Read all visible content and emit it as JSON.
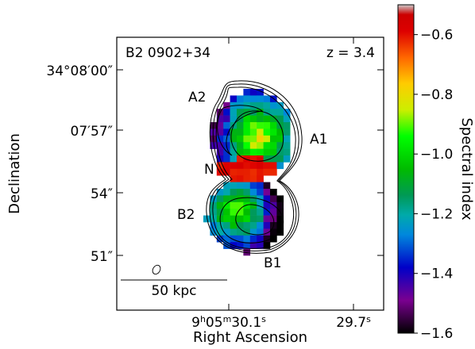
{
  "chart_data": {
    "type": "heatmap",
    "title": "",
    "source_name": "B2 0902+34",
    "redshift_label": "z = 3.4",
    "xlabel": "Right Ascension",
    "ylabel": "Declination",
    "x_ticks": [
      {
        "h": "9",
        "hs": "h",
        "m": "05",
        "ms": "m",
        "s": "30.1",
        "ss": "s"
      },
      {
        "s": "29.7",
        "ss": "s"
      }
    ],
    "y_ticks": [
      "34°08′00″",
      "07′57″",
      "54″",
      "51″"
    ],
    "colorbar": {
      "label": "Spectral index",
      "range": [
        -1.6,
        -0.5
      ],
      "ticks": [
        -0.6,
        -0.8,
        -1.0,
        -1.2,
        -1.4,
        -1.6
      ],
      "tick_labels": [
        "−0.6",
        "−0.8",
        "−1.0",
        "−1.2",
        "−1.4",
        "−1.6"
      ],
      "colormap": "nipy_spectral"
    },
    "component_labels": [
      "A1",
      "A2",
      "N",
      "B1",
      "B2"
    ],
    "scale_bar": "50 kpc",
    "lobes": [
      {
        "name": "A",
        "spectral_index_range": [
          -1.4,
          -0.75
        ],
        "steepest_edge": "left"
      },
      {
        "name": "N",
        "spectral_index_range": [
          -0.7,
          -0.55
        ]
      },
      {
        "name": "B",
        "spectral_index_range": [
          -1.45,
          -0.85
        ],
        "steepest_edge": "right"
      }
    ]
  }
}
